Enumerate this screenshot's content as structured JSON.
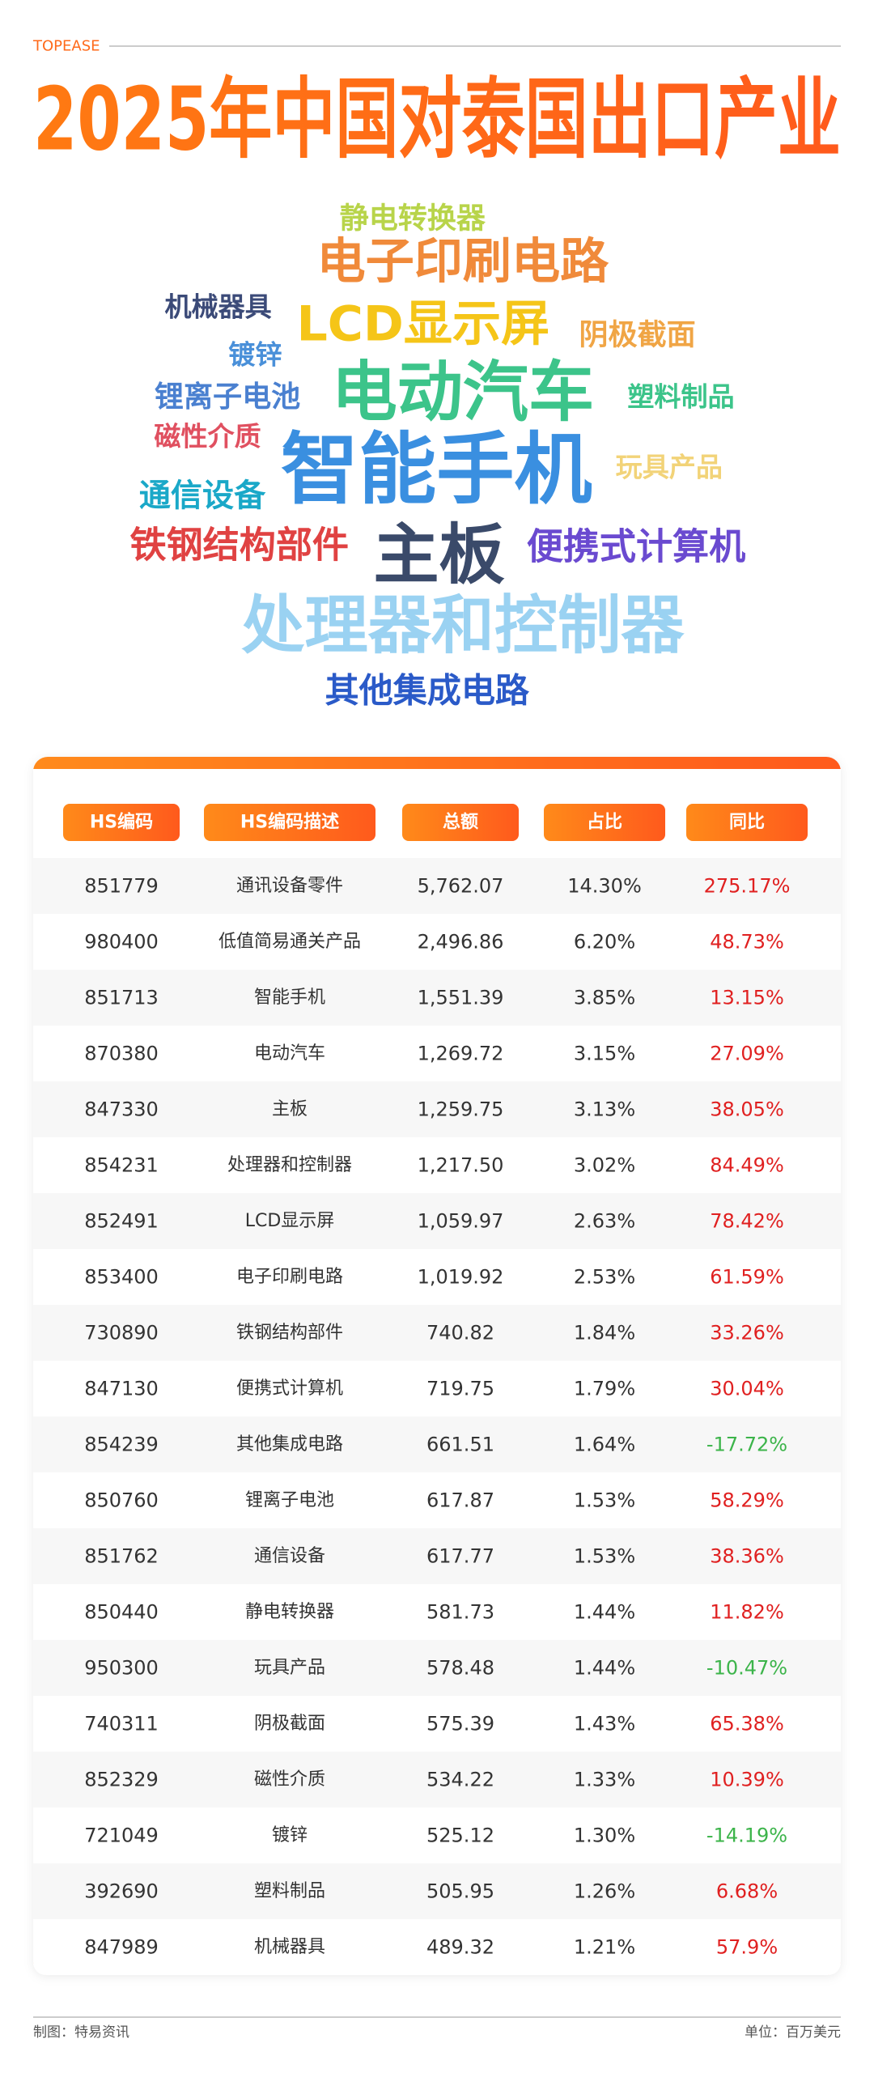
{
  "header": {
    "brand": "TOPEASE",
    "title": "2025年中国对泰国出口产业"
  },
  "word_cloud": {
    "words": [
      "静电转换器",
      "电子印刷电路",
      "机械器具",
      "LCD显示屏",
      "阴极截面",
      "镀锌",
      "锂离子电池",
      "电动汽车",
      "塑料制品",
      "磁性介质",
      "智能手机",
      "玩具产品",
      "通信设备",
      "铁钢结构部件",
      "主板",
      "便携式计算机",
      "处理器和控制器",
      "其他集成电路"
    ]
  },
  "table": {
    "columns": [
      "HS编码",
      "HS编码描述",
      "总额",
      "占比",
      "同比"
    ],
    "rows": [
      [
        "851779",
        "通讯设备零件",
        "5,762.07",
        "14.30%",
        "275.17%"
      ],
      [
        "980400",
        "低值简易通关产品",
        "2,496.86",
        "6.20%",
        "48.73%"
      ],
      [
        "851713",
        "智能手机",
        "1,551.39",
        "3.85%",
        "13.15%"
      ],
      [
        "870380",
        "电动汽车",
        "1,269.72",
        "3.15%",
        "27.09%"
      ],
      [
        "847330",
        "主板",
        "1,259.75",
        "3.13%",
        "38.05%"
      ],
      [
        "854231",
        "处理器和控制器",
        "1,217.50",
        "3.02%",
        "84.49%"
      ],
      [
        "852491",
        "LCD显示屏",
        "1,059.97",
        "2.63%",
        "78.42%"
      ],
      [
        "853400",
        "电子印刷电路",
        "1,019.92",
        "2.53%",
        "61.59%"
      ],
      [
        "730890",
        "铁钢结构部件",
        "740.82",
        "1.84%",
        "33.26%"
      ],
      [
        "847130",
        "便携式计算机",
        "719.75",
        "1.79%",
        "30.04%"
      ],
      [
        "854239",
        "其他集成电路",
        "661.51",
        "1.64%",
        "-17.72%"
      ],
      [
        "850760",
        "锂离子电池",
        "617.87",
        "1.53%",
        "58.29%"
      ],
      [
        "851762",
        "通信设备",
        "617.77",
        "1.53%",
        "38.36%"
      ],
      [
        "850440",
        "静电转换器",
        "581.73",
        "1.44%",
        "11.82%"
      ],
      [
        "950300",
        "玩具产品",
        "578.48",
        "1.44%",
        "-10.47%"
      ],
      [
        "740311",
        "阴极截面",
        "575.39",
        "1.43%",
        "65.38%"
      ],
      [
        "852329",
        "磁性介质",
        "534.22",
        "1.33%",
        "10.39%"
      ],
      [
        "721049",
        "镀锌",
        "525.12",
        "1.30%",
        "-14.19%"
      ],
      [
        "392690",
        "塑料制品",
        "505.95",
        "1.26%",
        "6.68%"
      ],
      [
        "847989",
        "机械器具",
        "489.32",
        "1.21%",
        "57.9%"
      ]
    ]
  },
  "footer": {
    "credit": "制图：特易资讯",
    "unit": "单位：百万美元"
  }
}
